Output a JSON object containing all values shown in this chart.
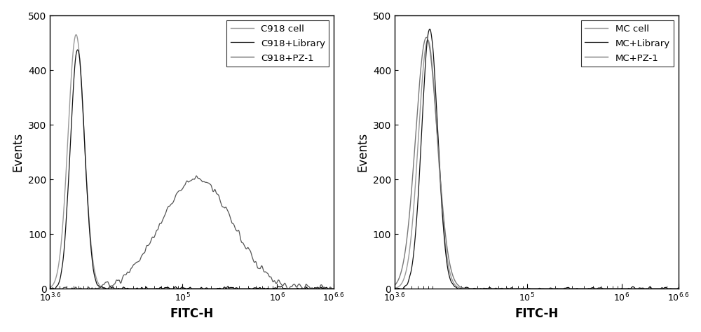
{
  "xlabel": "FITC-H",
  "ylabel": "Events",
  "xlim_log": [
    3.6,
    6.6
  ],
  "ylim": [
    0,
    500
  ],
  "yticks": [
    0,
    100,
    200,
    300,
    400,
    500
  ],
  "left_legend": [
    "C918 cell",
    "C918+Library",
    "C918+PZ-1"
  ],
  "right_legend": [
    "MC cell",
    "MC+Library",
    "MC+PZ-1"
  ],
  "left_colors": [
    "#999999",
    "#111111",
    "#555555"
  ],
  "right_colors": [
    "#999999",
    "#111111",
    "#777777"
  ],
  "major_ticks_log": [
    3.6,
    5,
    6,
    6.6
  ],
  "major_labels": [
    "10^{3.6}",
    "10^{5}",
    "10^{6}",
    "10^{6.6}"
  ],
  "background": "#ffffff"
}
